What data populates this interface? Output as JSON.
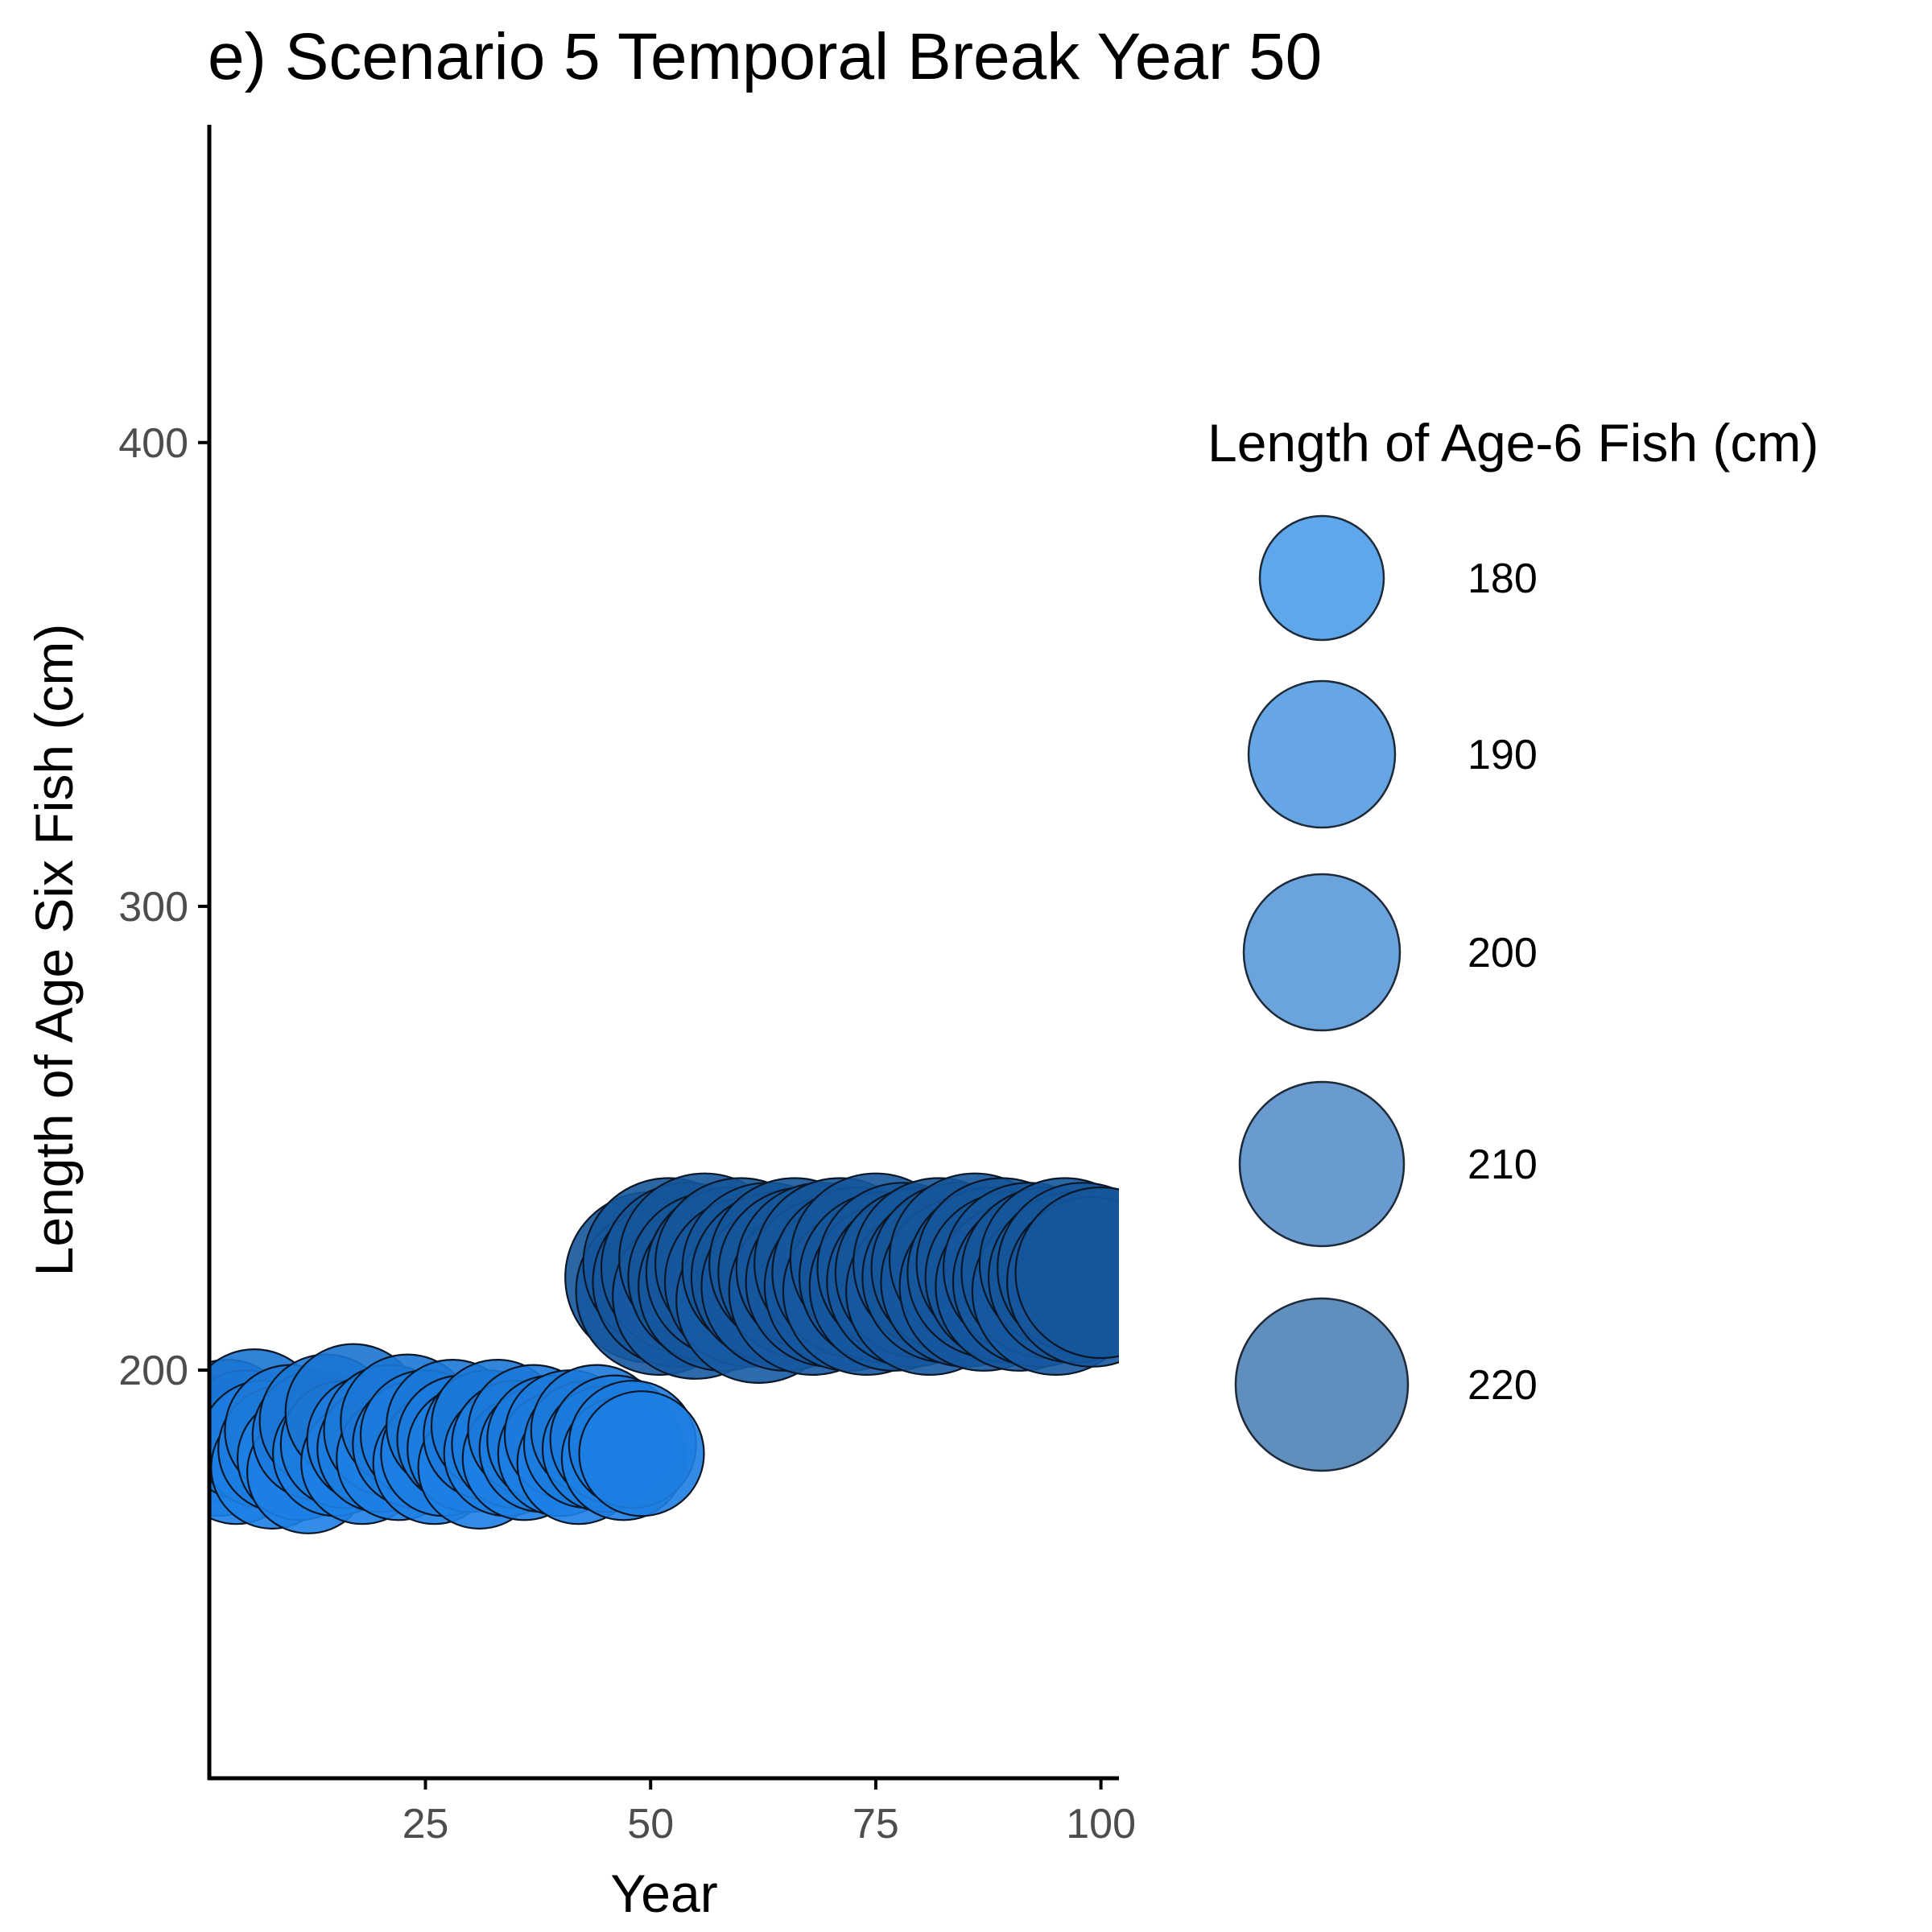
{
  "chart_data": {
    "type": "scatter",
    "title": "e) Scenario 5 Temporal Break Year 50",
    "xlabel": "Year",
    "ylabel": "Length of Age Six Fish (cm)",
    "xlim": [
      1,
      102
    ],
    "ylim": [
      112,
      468
    ],
    "x_ticks": [
      25,
      50,
      75,
      100
    ],
    "y_ticks": [
      200,
      300,
      400
    ],
    "grid": false,
    "legend": {
      "title": "Length of Age-6 Fish (cm)",
      "position": "right",
      "entries": [
        {
          "label": "180",
          "value": 180,
          "color": "#55a2ea",
          "fill_opacity": 0.95
        },
        {
          "label": "190",
          "value": 190,
          "color": "#5a9fe2",
          "fill_opacity": 0.93
        },
        {
          "label": "200",
          "value": 200,
          "color": "#5c9ada",
          "fill_opacity": 0.91
        },
        {
          "label": "210",
          "value": 210,
          "color": "#5a90cb",
          "fill_opacity": 0.9
        },
        {
          "label": "220",
          "value": 220,
          "color": "#4f82b6",
          "fill_opacity": 0.9
        }
      ]
    },
    "series": [
      {
        "points": [
          {
            "x": 1,
            "y": 185
          },
          {
            "x": 2,
            "y": 182
          },
          {
            "x": 3,
            "y": 188
          },
          {
            "x": 4,
            "y": 180
          },
          {
            "x": 5,
            "y": 186
          },
          {
            "x": 6,
            "y": 190
          },
          {
            "x": 7,
            "y": 184
          },
          {
            "x": 8,
            "y": 179
          },
          {
            "x": 9,
            "y": 183
          },
          {
            "x": 10,
            "y": 187
          },
          {
            "x": 11,
            "y": 181
          },
          {
            "x": 12,
            "y": 178
          },
          {
            "x": 13,
            "y": 186
          },
          {
            "x": 14,
            "y": 189
          },
          {
            "x": 15,
            "y": 182
          },
          {
            "x": 16,
            "y": 184
          },
          {
            "x": 17,
            "y": 191
          },
          {
            "x": 18,
            "y": 180
          },
          {
            "x": 19,
            "y": 185
          },
          {
            "x": 20,
            "y": 183
          },
          {
            "x": 21,
            "y": 187
          },
          {
            "x": 22,
            "y": 181
          },
          {
            "x": 23,
            "y": 189
          },
          {
            "x": 24,
            "y": 184
          },
          {
            "x": 25,
            "y": 186
          },
          {
            "x": 26,
            "y": 180
          },
          {
            "x": 27,
            "y": 182
          },
          {
            "x": 28,
            "y": 188
          },
          {
            "x": 29,
            "y": 185
          },
          {
            "x": 30,
            "y": 183
          },
          {
            "x": 31,
            "y": 179
          },
          {
            "x": 32,
            "y": 186
          },
          {
            "x": 33,
            "y": 188
          },
          {
            "x": 34,
            "y": 182
          },
          {
            "x": 35,
            "y": 184
          },
          {
            "x": 36,
            "y": 181
          },
          {
            "x": 37,
            "y": 187
          },
          {
            "x": 38,
            "y": 183
          },
          {
            "x": 39,
            "y": 185
          },
          {
            "x": 40,
            "y": 182
          },
          {
            "x": 41,
            "y": 186
          },
          {
            "x": 42,
            "y": 180
          },
          {
            "x": 43,
            "y": 184
          },
          {
            "x": 44,
            "y": 187
          },
          {
            "x": 45,
            "y": 183
          },
          {
            "x": 46,
            "y": 185
          },
          {
            "x": 47,
            "y": 181
          },
          {
            "x": 48,
            "y": 184
          },
          {
            "x": 49,
            "y": 182
          },
          {
            "x": 50,
            "y": 220
          },
          {
            "x": 51,
            "y": 217
          },
          {
            "x": 52,
            "y": 223
          },
          {
            "x": 53,
            "y": 219
          },
          {
            "x": 54,
            "y": 222
          },
          {
            "x": 55,
            "y": 216
          },
          {
            "x": 56,
            "y": 224
          },
          {
            "x": 57,
            "y": 220
          },
          {
            "x": 58,
            "y": 218
          },
          {
            "x": 59,
            "y": 221
          },
          {
            "x": 60,
            "y": 223
          },
          {
            "x": 61,
            "y": 219
          },
          {
            "x": 62,
            "y": 215
          },
          {
            "x": 63,
            "y": 222
          },
          {
            "x": 64,
            "y": 220
          },
          {
            "x": 65,
            "y": 218
          },
          {
            "x": 66,
            "y": 223
          },
          {
            "x": 67,
            "y": 221
          },
          {
            "x": 68,
            "y": 217
          },
          {
            "x": 69,
            "y": 222
          },
          {
            "x": 70,
            "y": 219
          },
          {
            "x": 71,
            "y": 223
          },
          {
            "x": 72,
            "y": 218
          },
          {
            "x": 73,
            "y": 221
          },
          {
            "x": 74,
            "y": 217
          },
          {
            "x": 75,
            "y": 224
          },
          {
            "x": 76,
            "y": 220
          },
          {
            "x": 77,
            "y": 218
          },
          {
            "x": 78,
            "y": 222
          },
          {
            "x": 79,
            "y": 219
          },
          {
            "x": 80,
            "y": 221
          },
          {
            "x": 81,
            "y": 217
          },
          {
            "x": 82,
            "y": 223
          },
          {
            "x": 83,
            "y": 220
          },
          {
            "x": 84,
            "y": 222
          },
          {
            "x": 85,
            "y": 219
          },
          {
            "x": 86,
            "y": 224
          },
          {
            "x": 87,
            "y": 218
          },
          {
            "x": 88,
            "y": 221
          },
          {
            "x": 89,
            "y": 223
          },
          {
            "x": 90,
            "y": 220
          },
          {
            "x": 91,
            "y": 218
          },
          {
            "x": 92,
            "y": 222
          },
          {
            "x": 93,
            "y": 219
          },
          {
            "x": 94,
            "y": 221
          },
          {
            "x": 95,
            "y": 217
          },
          {
            "x": 96,
            "y": 223
          },
          {
            "x": 97,
            "y": 220
          },
          {
            "x": 98,
            "y": 222
          },
          {
            "x": 99,
            "y": 219
          },
          {
            "x": 100,
            "y": 221
          }
        ]
      }
    ]
  }
}
